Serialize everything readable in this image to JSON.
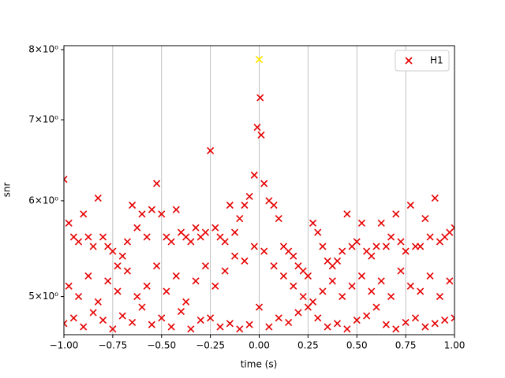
{
  "chart_data": {
    "type": "scatter",
    "xlabel": "time (s)",
    "ylabel": "snr",
    "log_y": true,
    "grid_x": true,
    "legend": "upper right",
    "xlim": [
      -1,
      1
    ],
    "ylim": [
      4.65,
      8.06
    ],
    "xticks": [
      {
        "value": -1,
        "label": "−1.00"
      },
      {
        "value": -0.75,
        "label": "−0.75"
      },
      {
        "value": -0.5,
        "label": "−0.50"
      },
      {
        "value": -0.25,
        "label": "−0.25"
      },
      {
        "value": 0,
        "label": "0.00"
      },
      {
        "value": 0.25,
        "label": "0.25"
      },
      {
        "value": 0.5,
        "label": "0.50"
      },
      {
        "value": 0.75,
        "label": "0.75"
      },
      {
        "value": 1,
        "label": "1.00"
      }
    ],
    "yticks": [
      {
        "value": 5,
        "label": "5×10⁰"
      },
      {
        "value": 6,
        "label": "6×10⁰"
      },
      {
        "value": 7,
        "label": "7×10⁰"
      },
      {
        "value": 8,
        "label": "8×10⁰"
      }
    ],
    "series": [
      {
        "name": "H1",
        "color": "#e60000",
        "x": [
          -1,
          -0.975,
          -0.95,
          -0.925,
          -0.9,
          -0.875,
          -0.85,
          -0.825,
          -0.8,
          -0.775,
          -0.75,
          -0.725,
          -0.7,
          -0.675,
          -0.65,
          -0.625,
          -0.6,
          -0.575,
          -0.55,
          -0.525,
          -0.5,
          -0.475,
          -0.45,
          -0.425,
          -0.4,
          -0.375,
          -0.35,
          -0.325,
          -0.3,
          -0.275,
          -0.25,
          -0.225,
          -0.2,
          -0.175,
          -0.15,
          -0.125,
          -0.1,
          -0.075,
          -0.05,
          -0.025,
          -0.01,
          0,
          0.005,
          0.01,
          0.025,
          0.05,
          0.075,
          0.1,
          0.125,
          0.15,
          0.175,
          0.2,
          0.225,
          0.25,
          0.275,
          0.3,
          0.325,
          0.35,
          0.375,
          0.4,
          0.425,
          0.45,
          0.475,
          0.5,
          0.525,
          0.55,
          0.575,
          0.6,
          0.625,
          0.65,
          0.675,
          0.7,
          0.725,
          0.75,
          0.775,
          0.8,
          0.825,
          0.85,
          0.875,
          0.9,
          0.925,
          0.95,
          0.975,
          1,
          -1,
          -0.95,
          -0.9,
          -0.85,
          -0.8,
          -0.75,
          -0.7,
          -0.65,
          -0.6,
          -0.55,
          -0.5,
          -0.45,
          -0.4,
          -0.35,
          -0.3,
          -0.25,
          -0.2,
          -0.15,
          -0.1,
          -0.05,
          0,
          0.05,
          0.1,
          0.15,
          0.2,
          0.25,
          0.3,
          0.35,
          0.4,
          0.45,
          0.5,
          0.55,
          0.6,
          0.65,
          0.7,
          0.75,
          0.8,
          0.85,
          0.9,
          0.95,
          1,
          -0.975,
          -0.925,
          -0.875,
          -0.825,
          -0.775,
          -0.725,
          -0.675,
          -0.625,
          -0.575,
          -0.525,
          -0.475,
          -0.425,
          -0.375,
          -0.325,
          -0.275,
          -0.225,
          -0.175,
          -0.125,
          -0.075,
          -0.025,
          0.025,
          0.075,
          0.125,
          0.175,
          0.225,
          0.275,
          0.325,
          0.375,
          0.425,
          0.475,
          0.525,
          0.575,
          0.625,
          0.675,
          0.725,
          0.775,
          0.825,
          0.875,
          0.925,
          0.975
        ],
        "values": [
          6.25,
          5.75,
          5.6,
          5.55,
          5.85,
          5.6,
          5.5,
          6.03,
          5.6,
          5.5,
          5.45,
          5.3,
          5.4,
          5.55,
          5.95,
          5.7,
          5.85,
          5.6,
          5.9,
          6.2,
          5.85,
          5.6,
          5.55,
          5.9,
          5.65,
          5.6,
          5.55,
          5.7,
          5.6,
          5.65,
          6.6,
          5.7,
          5.6,
          5.55,
          5.95,
          5.65,
          5.8,
          5.95,
          6.05,
          6.3,
          6.9,
          7.85,
          7.3,
          6.8,
          6.2,
          6.0,
          5.95,
          5.8,
          5.5,
          5.45,
          5.4,
          5.3,
          5.25,
          5.2,
          5.75,
          5.65,
          5.5,
          5.35,
          5.3,
          5.35,
          5.45,
          5.85,
          5.5,
          5.55,
          5.75,
          5.45,
          5.4,
          5.5,
          5.75,
          5.5,
          5.6,
          5.85,
          5.55,
          5.45,
          5.95,
          5.5,
          5.5,
          5.8,
          5.6,
          6.03,
          5.55,
          5.6,
          5.65,
          5.7,
          4.75,
          4.8,
          4.72,
          4.85,
          4.78,
          4.7,
          4.82,
          4.76,
          4.9,
          4.74,
          4.8,
          4.72,
          4.86,
          4.7,
          4.78,
          4.8,
          4.72,
          4.75,
          4.7,
          4.74,
          4.9,
          4.72,
          4.8,
          4.76,
          4.85,
          4.9,
          4.8,
          4.72,
          4.75,
          4.7,
          4.78,
          4.82,
          4.9,
          4.74,
          4.7,
          4.76,
          4.8,
          4.72,
          4.75,
          4.78,
          4.8,
          5.1,
          5.0,
          5.2,
          4.95,
          5.15,
          5.05,
          5.25,
          5.0,
          5.1,
          5.3,
          5.05,
          5.2,
          4.95,
          5.15,
          5.3,
          5.1,
          5.25,
          5.4,
          5.35,
          5.5,
          5.45,
          5.3,
          5.2,
          5.1,
          5.0,
          4.95,
          5.05,
          5.15,
          5.0,
          5.1,
          5.2,
          5.05,
          5.15,
          5.0,
          5.25,
          5.1,
          5.05,
          5.2,
          5.0,
          5.15
        ]
      }
    ],
    "peak": {
      "x": 0,
      "y": 7.85,
      "color": "#ffff00"
    }
  }
}
